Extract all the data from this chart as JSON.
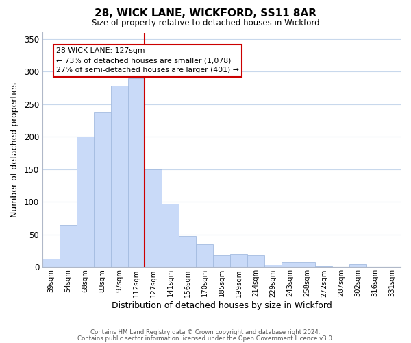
{
  "title": "28, WICK LANE, WICKFORD, SS11 8AR",
  "subtitle": "Size of property relative to detached houses in Wickford",
  "xlabel": "Distribution of detached houses by size in Wickford",
  "ylabel": "Number of detached properties",
  "bar_labels": [
    "39sqm",
    "54sqm",
    "68sqm",
    "83sqm",
    "97sqm",
    "112sqm",
    "127sqm",
    "141sqm",
    "156sqm",
    "170sqm",
    "185sqm",
    "199sqm",
    "214sqm",
    "229sqm",
    "243sqm",
    "258sqm",
    "272sqm",
    "287sqm",
    "302sqm",
    "316sqm",
    "331sqm"
  ],
  "bar_values": [
    13,
    65,
    200,
    238,
    278,
    290,
    150,
    97,
    48,
    35,
    18,
    20,
    18,
    4,
    8,
    8,
    2,
    0,
    5,
    0,
    0
  ],
  "bar_color": "#c9daf8",
  "bar_edge_color": "#a4bce0",
  "highlight_index": 6,
  "highlight_color": "#cc0000",
  "ylim": [
    0,
    360
  ],
  "yticks": [
    0,
    50,
    100,
    150,
    200,
    250,
    300,
    350
  ],
  "annotation_title": "28 WICK LANE: 127sqm",
  "annotation_line1": "← 73% of detached houses are smaller (1,078)",
  "annotation_line2": "27% of semi-detached houses are larger (401) →",
  "annotation_box_color": "#ffffff",
  "annotation_box_edge": "#cc0000",
  "footer_line1": "Contains HM Land Registry data © Crown copyright and database right 2024.",
  "footer_line2": "Contains public sector information licensed under the Open Government Licence v3.0.",
  "background_color": "#ffffff",
  "grid_color": "#c8d8ec"
}
